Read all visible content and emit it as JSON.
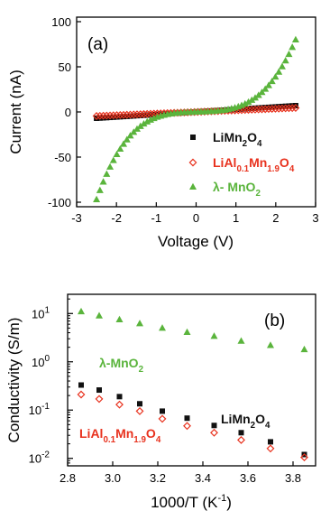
{
  "colors": {
    "LiMn2O4": "#111111",
    "LiAl": "#e8321e",
    "lambda": "#5ab43c"
  },
  "chart_data": [
    {
      "type": "scatter",
      "panel_label": "(a)",
      "xlabel": "Voltage (V)",
      "ylabel": "Current (nA)",
      "xlim": [
        -3,
        3
      ],
      "ylim": [
        -105,
        105
      ],
      "xticks": [
        "-3",
        "-2",
        "-1",
        "0",
        "1",
        "2",
        "3"
      ],
      "yticks": [
        "-100",
        "-50",
        "0",
        "50",
        "100"
      ],
      "legend_position": "bottom-right",
      "legend": [
        {
          "key": "LiMn2O4",
          "base": "LiMn",
          "parts": [
            [
              "2",
              "sub"
            ],
            [
              "O",
              ""
            ],
            [
              "4",
              "sub"
            ]
          ]
        },
        {
          "key": "LiAl",
          "base": "LiAl",
          "parts": [
            [
              "0.1",
              "sub"
            ],
            [
              "Mn",
              ""
            ],
            [
              "1.9",
              "sub"
            ],
            [
              "O",
              ""
            ],
            [
              "4",
              "sub"
            ]
          ]
        },
        {
          "key": "lambda",
          "base": "λ- MnO",
          "parts": [
            [
              "2",
              "sub"
            ]
          ]
        }
      ],
      "series": [
        {
          "key": "LiMn2O4",
          "marker": "square",
          "x_range": [
            -2.5,
            2.5
          ],
          "points": 60,
          "current_at_2_5V": 7.0
        },
        {
          "key": "LiAl",
          "marker": "diamond",
          "x_range": [
            -2.5,
            2.5
          ],
          "points": 60,
          "current_at_2_5V": 4.5
        },
        {
          "key": "lambda",
          "marker": "triangle",
          "x_range": [
            -2.5,
            2.5
          ],
          "points": 60,
          "current_at_2_5V": 80,
          "current_at_neg_2_5V": -97
        }
      ]
    },
    {
      "type": "scatter",
      "panel_label": "(b)",
      "xlabel": "1000/T (K",
      "xlabel_sup": "-1",
      "xlabel_end": ")",
      "ylabel": "Conductivity (S/m)",
      "yscale": "log",
      "xlim": [
        2.8,
        3.9
      ],
      "ylim": [
        0.007,
        25
      ],
      "xticks": [
        "2.8",
        "3.0",
        "3.2",
        "3.4",
        "3.6",
        "3.8"
      ],
      "yticks": [
        {
          "base": "10",
          "exp": "1"
        },
        {
          "base": "10",
          "exp": "0"
        },
        {
          "base": "10",
          "exp": "-1"
        },
        {
          "base": "10",
          "exp": "-2"
        }
      ],
      "labels": [
        {
          "key": "lambda",
          "base": "λ-MnO",
          "parts": [
            [
              "2",
              "sub"
            ]
          ]
        },
        {
          "key": "LiMn2O4",
          "base": "LiMn",
          "parts": [
            [
              "2",
              "sub"
            ],
            [
              "O",
              ""
            ],
            [
              "4",
              "sub"
            ]
          ]
        },
        {
          "key": "LiAl",
          "base": "LiAl",
          "parts": [
            [
              "0.1",
              "sub"
            ],
            [
              "Mn",
              ""
            ],
            [
              "1.9",
              "sub"
            ],
            [
              "O",
              ""
            ],
            [
              "4",
              "sub"
            ]
          ]
        }
      ],
      "series": [
        {
          "key": "lambda",
          "marker": "triangle",
          "x": [
            2.86,
            2.94,
            3.03,
            3.12,
            3.22,
            3.33,
            3.45,
            3.57,
            3.7,
            3.85
          ],
          "y": [
            11.0,
            9.0,
            7.5,
            6.2,
            5.0,
            4.1,
            3.4,
            2.7,
            2.2,
            1.8
          ]
        },
        {
          "key": "LiMn2O4",
          "marker": "square",
          "x": [
            2.86,
            2.94,
            3.03,
            3.12,
            3.22,
            3.33,
            3.45,
            3.57,
            3.7,
            3.85
          ],
          "y": [
            0.33,
            0.26,
            0.19,
            0.135,
            0.095,
            0.068,
            0.048,
            0.034,
            0.022,
            0.012
          ]
        },
        {
          "key": "LiAl",
          "marker": "diamond",
          "x": [
            2.86,
            2.94,
            3.03,
            3.12,
            3.22,
            3.33,
            3.45,
            3.57,
            3.7,
            3.85
          ],
          "y": [
            0.21,
            0.17,
            0.13,
            0.095,
            0.066,
            0.047,
            0.034,
            0.024,
            0.016,
            0.0105
          ]
        }
      ]
    }
  ]
}
